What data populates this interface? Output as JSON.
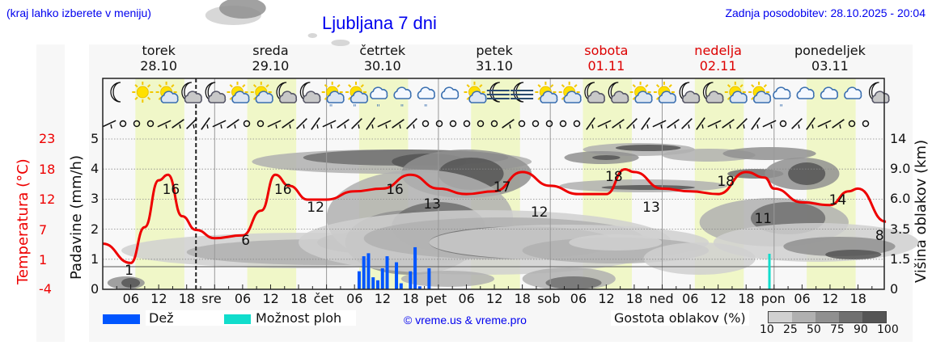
{
  "header": {
    "note": "(kraj lahko izberete v meniju)",
    "title": "Ljubljana 7 dni",
    "updated": "Zadnja posodobitev: 28.10.2025 - 20:04"
  },
  "days": [
    {
      "name": "torek",
      "date": "28.10",
      "weekend": false,
      "short": ""
    },
    {
      "name": "sreda",
      "date": "29.10",
      "weekend": false,
      "short": "sre"
    },
    {
      "name": "četrtek",
      "date": "30.10",
      "weekend": false,
      "short": "čet"
    },
    {
      "name": "petek",
      "date": "31.10",
      "weekend": false,
      "short": "pet"
    },
    {
      "name": "sobota",
      "date": "01.11",
      "weekend": true,
      "short": "sob"
    },
    {
      "name": "nedelja",
      "date": "02.11",
      "weekend": true,
      "short": "ned"
    },
    {
      "name": "ponedeljek",
      "date": "03.11",
      "weekend": false,
      "short": "pon"
    }
  ],
  "axes": {
    "left_temp_label": "Temperatura (°C)",
    "left_precip_label": "Padavine (mm/h)",
    "right_label": "Višina oblakov (km)",
    "temp_ticks": [
      "23",
      "18",
      "12",
      "7",
      "1",
      "-4"
    ],
    "precip_ticks": [
      "5",
      "4",
      "3",
      "2",
      "1",
      "0"
    ],
    "cloud_height_ticks": [
      "14",
      "9.0",
      "6.0",
      "3.5",
      "1.5",
      "0"
    ],
    "hour_ticks": [
      "06",
      "12",
      "18"
    ]
  },
  "legend": {
    "rain_label": "Dež",
    "showers_label": "Možnost ploh",
    "copyright": "© vreme.us & vreme.pro",
    "cloud_density_label": "Gostota oblakov (%)",
    "cloud_density_ticks": [
      "10",
      "25",
      "50",
      "75",
      "90",
      "100"
    ],
    "colors": {
      "rain": "#0055ff",
      "showers": "#11ddcc",
      "temp_line": "#ee0000",
      "daylight": "#f0f7c8",
      "cloud_shades": [
        "#d0d0d0",
        "#b0b0b0",
        "#909090",
        "#707070",
        "#555555"
      ]
    }
  },
  "chart_data": {
    "type": "line",
    "title": "Ljubljana 7 dni",
    "xlabel": "",
    "ylabel": "Temperatura (°C) / Padavine (mm/h)",
    "y2label": "Višina oblakov (km)",
    "temp_ylim": [
      -4,
      23
    ],
    "precip_ylim": [
      0,
      5
    ],
    "x_hours_from_start": [
      0,
      6,
      9,
      12,
      14,
      17,
      20,
      24,
      30,
      34,
      37,
      40,
      44,
      48,
      54,
      60,
      66,
      72,
      78,
      84,
      90,
      96,
      102,
      108,
      112,
      114,
      120,
      126,
      132,
      138,
      142,
      144,
      150,
      156,
      160,
      162,
      168
    ],
    "series": [
      {
        "name": "Temperatura",
        "unit": "°C",
        "values": [
          4,
          0.5,
          7,
          15.5,
          16.5,
          9,
          6.5,
          5,
          5.5,
          10,
          16.5,
          14.5,
          12,
          12,
          13.5,
          14,
          16.5,
          14,
          13,
          13.5,
          17,
          14.5,
          13,
          13,
          17.5,
          17,
          14,
          13.5,
          13,
          17,
          16,
          14,
          11.5,
          11,
          13.5,
          14,
          8
        ]
      },
      {
        "name": "Dež",
        "unit": "mm/h",
        "x_hours_from_start": [
          55,
          56,
          57,
          58,
          59,
          60,
          61,
          63,
          64,
          66,
          67,
          68,
          70
        ],
        "values": [
          0.6,
          1.1,
          1.2,
          0.4,
          0.3,
          0.7,
          1.1,
          0.9,
          0.2,
          0.6,
          1.4,
          0.1,
          0.7
        ]
      },
      {
        "name": "Možnost ploh",
        "unit": "mm/h",
        "x_hours_from_start": [
          143
        ],
        "values": [
          0.4
        ]
      }
    ],
    "point_labels": [
      {
        "x_hours": 6,
        "value": "1"
      },
      {
        "x_hours": 15,
        "value": "16"
      },
      {
        "x_hours": 31,
        "value": "6"
      },
      {
        "x_hours": 39,
        "value": "16"
      },
      {
        "x_hours": 46,
        "value": "12"
      },
      {
        "x_hours": 63,
        "value": "16"
      },
      {
        "x_hours": 71,
        "value": "13"
      },
      {
        "x_hours": 86,
        "value": "17"
      },
      {
        "x_hours": 94,
        "value": "12"
      },
      {
        "x_hours": 110,
        "value": "18"
      },
      {
        "x_hours": 118,
        "value": "13"
      },
      {
        "x_hours": 134,
        "value": "18"
      },
      {
        "x_hours": 142,
        "value": "11"
      },
      {
        "x_hours": 158,
        "value": "14"
      },
      {
        "x_hours": 167,
        "value": "8"
      }
    ],
    "current_time_marker_hours": 20,
    "grid": true
  }
}
